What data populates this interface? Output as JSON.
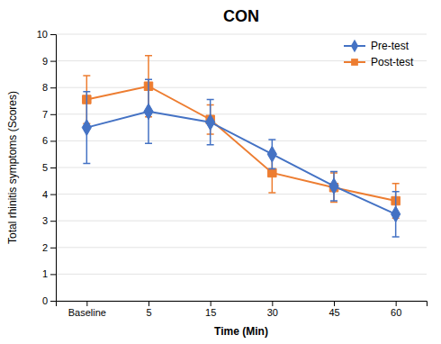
{
  "chart_data": {
    "type": "line",
    "title": "CON",
    "xlabel": "Time (Min)",
    "ylabel": "Total rhinitis symptoms (Scores)",
    "categories": [
      "Baseline",
      "5",
      "15",
      "30",
      "45",
      "60"
    ],
    "series": [
      {
        "name": "Pre-test",
        "color": "#4472C4",
        "marker": "diamond",
        "values": [
          6.5,
          7.1,
          6.7,
          5.5,
          4.3,
          3.25
        ],
        "errors": [
          1.35,
          1.2,
          0.85,
          0.55,
          0.55,
          0.85
        ]
      },
      {
        "name": "Post-test",
        "color": "#ED7D31",
        "marker": "square",
        "values": [
          7.55,
          8.05,
          6.8,
          4.8,
          4.25,
          3.75
        ],
        "errors": [
          0.9,
          1.15,
          0.55,
          0.75,
          0.55,
          0.65
        ]
      }
    ],
    "ylim": [
      0,
      10
    ],
    "yticks": [
      0,
      1,
      2,
      3,
      4,
      5,
      6,
      7,
      8,
      9,
      10
    ],
    "grid": true,
    "legend": "upper right"
  }
}
